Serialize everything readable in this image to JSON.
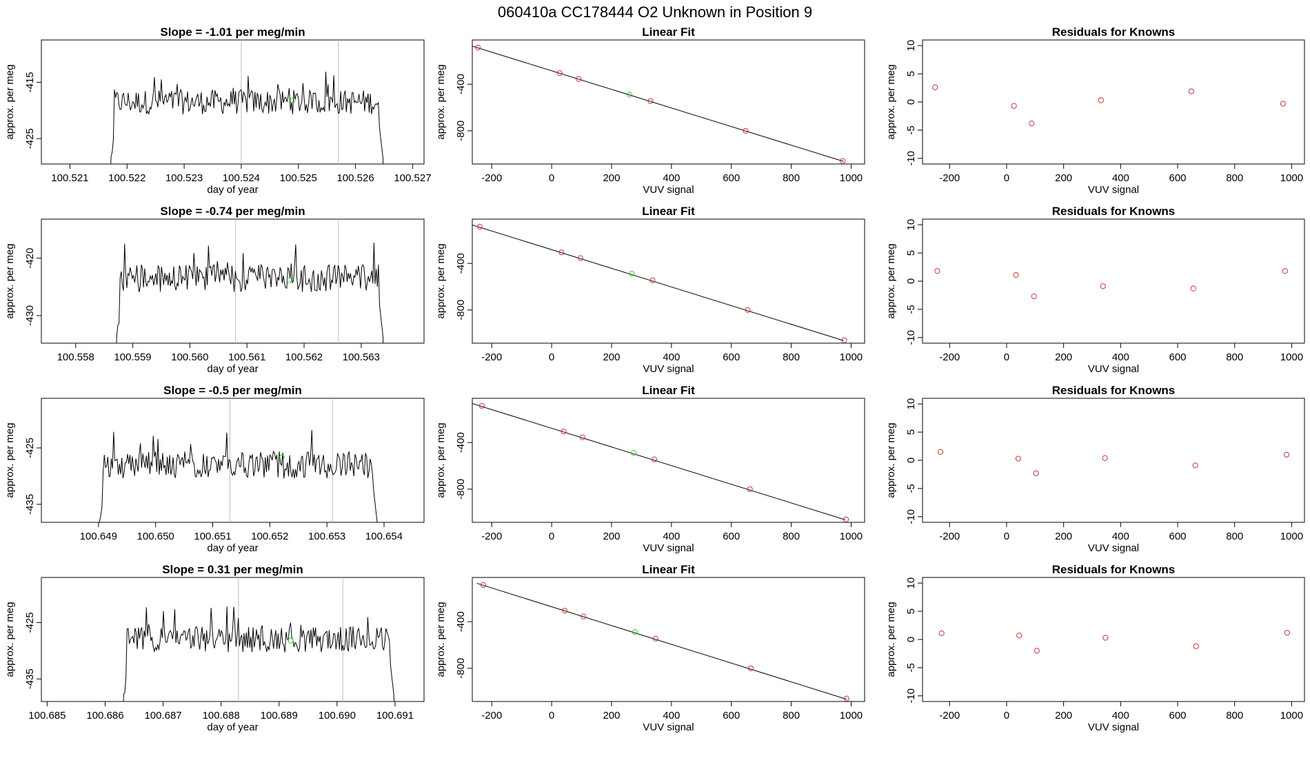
{
  "title": "060410a      CC178444   O2 Unknown in Position  9",
  "colors": {
    "trace": "#000000",
    "fit_line": "#000000",
    "known_point": "#cd3333",
    "unknown_point": "#33cc33",
    "marker_line": "#bebebe"
  },
  "chart_data": [
    {
      "type": "line",
      "panel": "time-series",
      "row": 0,
      "title": "Slope =  -1.01  per meg/min",
      "xlabel": "day of year",
      "ylabel": "approx. per meg",
      "xlim": [
        100.5205,
        100.5272
      ],
      "ylim": [
        -429.5,
        -407.5
      ],
      "xticks": [
        "100.521",
        "100.522",
        "100.523",
        "100.524",
        "100.525",
        "100.526",
        "100.527"
      ],
      "yticks": [
        "-415",
        "-425"
      ],
      "vlines": [
        100.524,
        100.5257
      ],
      "trace_start": 100.5217,
      "trace_end": 100.5265,
      "level": -418.5,
      "noise": 2.2,
      "marker": {
        "x": 100.5249,
        "y": -418.2
      }
    },
    {
      "type": "scatter",
      "panel": "linear-fit",
      "row": 0,
      "title": "Linear Fit",
      "xlabel": "VUV signal",
      "ylabel": "approx. per meg",
      "xlim": [
        -265,
        1045
      ],
      "ylim": [
        -1085,
        -20
      ],
      "xticks": [
        "-200",
        "0",
        "200",
        "400",
        "600",
        "800",
        "1000"
      ],
      "yticks": [
        "-400",
        "-800"
      ],
      "line": {
        "x1": -265,
        "y1": -73,
        "x2": 975,
        "y2": -1063
      },
      "known_points": [
        {
          "x": -246,
          "y": -85
        },
        {
          "x": 27,
          "y": -305
        },
        {
          "x": 90,
          "y": -355
        },
        {
          "x": 330,
          "y": -545
        },
        {
          "x": 648,
          "y": -800
        },
        {
          "x": 972,
          "y": -1060
        }
      ],
      "unknown_point": {
        "x": 260,
        "y": -489
      }
    },
    {
      "type": "scatter",
      "panel": "residuals",
      "row": 0,
      "title": "Residuals for Knowns",
      "xlabel": "VUV signal",
      "ylabel": "approx. per meg",
      "xlim": [
        -295,
        1045
      ],
      "ylim": [
        -11,
        11
      ],
      "xticks": [
        "-200",
        "0",
        "200",
        "400",
        "600",
        "800",
        "1000"
      ],
      "yticks": [
        "10",
        "5",
        "0",
        "-5",
        "-10"
      ],
      "points": [
        {
          "x": -251,
          "y": 2.6
        },
        {
          "x": 26,
          "y": -0.7
        },
        {
          "x": 88,
          "y": -3.8
        },
        {
          "x": 331,
          "y": 0.3
        },
        {
          "x": 648,
          "y": 1.9
        },
        {
          "x": 970,
          "y": -0.3
        }
      ]
    },
    {
      "type": "line",
      "panel": "time-series",
      "row": 1,
      "title": "Slope =  -0.74  per meg/min",
      "xlabel": "day of year",
      "ylabel": "approx. per meg",
      "xlim": [
        100.5574,
        100.5641
      ],
      "ylim": [
        -434.8,
        -413.2
      ],
      "xticks": [
        "100.558",
        "100.559",
        "100.560",
        "100.561",
        "100.562",
        "100.563"
      ],
      "yticks": [
        "-420",
        "-430"
      ],
      "vlines": [
        100.5608,
        100.5626
      ],
      "trace_start": 100.5587,
      "trace_end": 100.5634,
      "level": -423.5,
      "noise": 2.4,
      "marker": {
        "x": 100.56174,
        "y": -423.8
      }
    },
    {
      "type": "scatter",
      "panel": "linear-fit",
      "row": 1,
      "title": "Linear Fit",
      "xlabel": "VUV signal",
      "ylabel": "approx. per meg",
      "xlim": [
        -265,
        1045
      ],
      "ylim": [
        -1085,
        -20
      ],
      "xticks": [
        "-200",
        "0",
        "200",
        "400",
        "600",
        "800",
        "1000"
      ],
      "yticks": [
        "-400",
        "-800"
      ],
      "line": {
        "x1": -265,
        "y1": -70,
        "x2": 975,
        "y2": -1063
      },
      "known_points": [
        {
          "x": -240,
          "y": -85
        },
        {
          "x": 33,
          "y": -305
        },
        {
          "x": 96,
          "y": -355
        },
        {
          "x": 337,
          "y": -545
        },
        {
          "x": 655,
          "y": -800
        },
        {
          "x": 977,
          "y": -1060
        }
      ],
      "unknown_point": {
        "x": 268,
        "y": -489
      }
    },
    {
      "type": "scatter",
      "panel": "residuals",
      "row": 1,
      "title": "Residuals for Knowns",
      "xlabel": "VUV signal",
      "ylabel": "approx. per meg",
      "xlim": [
        -295,
        1045
      ],
      "ylim": [
        -11,
        11
      ],
      "xticks": [
        "-200",
        "0",
        "200",
        "400",
        "600",
        "800",
        "1000"
      ],
      "yticks": [
        "10",
        "5",
        "0",
        "-5",
        "-10"
      ],
      "points": [
        {
          "x": -243,
          "y": 1.8
        },
        {
          "x": 33,
          "y": 1.1
        },
        {
          "x": 96,
          "y": -2.7
        },
        {
          "x": 338,
          "y": -0.9
        },
        {
          "x": 655,
          "y": -1.3
        },
        {
          "x": 977,
          "y": 1.8
        }
      ]
    },
    {
      "type": "line",
      "panel": "time-series",
      "row": 2,
      "title": "Slope =  -0.5  per meg/min",
      "xlabel": "day of year",
      "ylabel": "approx. per meg",
      "xlim": [
        100.648,
        100.6547
      ],
      "ylim": [
        -438.2,
        -416.2
      ],
      "xticks": [
        "100.649",
        "100.650",
        "100.651",
        "100.652",
        "100.653",
        "100.654"
      ],
      "yticks": [
        "-425",
        "-435"
      ],
      "vlines": [
        100.6513,
        100.6531
      ],
      "trace_start": 100.649,
      "trace_end": 100.6539,
      "level": -428.0,
      "noise": 2.4,
      "marker": {
        "x": 100.65221,
        "y": -426.7
      }
    },
    {
      "type": "scatter",
      "panel": "linear-fit",
      "row": 2,
      "title": "Linear Fit",
      "xlabel": "VUV signal",
      "ylabel": "approx. per meg",
      "xlim": [
        -265,
        1045
      ],
      "ylim": [
        -1085,
        -20
      ],
      "xticks": [
        "-200",
        "0",
        "200",
        "400",
        "600",
        "800",
        "1000"
      ],
      "yticks": [
        "-400",
        "-800"
      ],
      "line": {
        "x1": -265,
        "y1": -65,
        "x2": 980,
        "y2": -1063
      },
      "known_points": [
        {
          "x": -233,
          "y": -85
        },
        {
          "x": 40,
          "y": -305
        },
        {
          "x": 103,
          "y": -355
        },
        {
          "x": 343,
          "y": -545
        },
        {
          "x": 662,
          "y": -800
        },
        {
          "x": 983,
          "y": -1060
        }
      ],
      "unknown_point": {
        "x": 274,
        "y": -489
      }
    },
    {
      "type": "scatter",
      "panel": "residuals",
      "row": 2,
      "title": "Residuals for Knowns",
      "xlabel": "VUV signal",
      "ylabel": "approx. per meg",
      "xlim": [
        -295,
        1045
      ],
      "ylim": [
        -11,
        11
      ],
      "xticks": [
        "-200",
        "0",
        "200",
        "400",
        "600",
        "800",
        "1000"
      ],
      "yticks": [
        "10",
        "5",
        "0",
        "-5",
        "-10"
      ],
      "points": [
        {
          "x": -232,
          "y": 1.5
        },
        {
          "x": 41,
          "y": 0.3
        },
        {
          "x": 103,
          "y": -2.3
        },
        {
          "x": 345,
          "y": 0.4
        },
        {
          "x": 662,
          "y": -0.9
        },
        {
          "x": 982,
          "y": 1.0
        }
      ]
    },
    {
      "type": "line",
      "panel": "time-series",
      "row": 3,
      "title": "Slope =  0.31  per meg/min",
      "xlabel": "day of year",
      "ylabel": "approx. per meg",
      "xlim": [
        100.6849,
        100.6915
      ],
      "ylim": [
        -439.0,
        -417.0
      ],
      "xticks": [
        "100.685",
        "100.686",
        "100.687",
        "100.688",
        "100.689",
        "100.690",
        "100.691"
      ],
      "yticks": [
        "-425",
        "-435"
      ],
      "vlines": [
        100.6883,
        100.6901
      ],
      "trace_start": 100.6863,
      "trace_end": 100.691,
      "level": -428.0,
      "noise": 2.3,
      "marker": {
        "x": 100.6892,
        "y": -428.2
      }
    },
    {
      "type": "scatter",
      "panel": "linear-fit",
      "row": 3,
      "title": "Linear Fit",
      "xlabel": "VUV signal",
      "ylabel": "approx. per meg",
      "xlim": [
        -265,
        1045
      ],
      "ylim": [
        -1085,
        -20
      ],
      "xticks": [
        "-200",
        "0",
        "200",
        "400",
        "600",
        "800",
        "1000"
      ],
      "yticks": [
        "-400",
        "-800"
      ],
      "line": {
        "x1": -250,
        "y1": -70,
        "x2": 985,
        "y2": -1066
      },
      "known_points": [
        {
          "x": -228,
          "y": -85
        },
        {
          "x": 44,
          "y": -305
        },
        {
          "x": 106,
          "y": -355
        },
        {
          "x": 347,
          "y": -545
        },
        {
          "x": 665,
          "y": -800
        },
        {
          "x": 985,
          "y": -1060
        }
      ],
      "unknown_point": {
        "x": 278,
        "y": -489
      }
    },
    {
      "type": "scatter",
      "panel": "residuals",
      "row": 3,
      "title": "Residuals for Knowns",
      "xlabel": "VUV signal",
      "ylabel": "approx. per meg",
      "xlim": [
        -295,
        1045
      ],
      "ylim": [
        -11,
        11
      ],
      "xticks": [
        "-200",
        "0",
        "200",
        "400",
        "600",
        "800",
        "1000"
      ],
      "yticks": [
        "10",
        "5",
        "0",
        "-5",
        "-10"
      ],
      "points": [
        {
          "x": -228,
          "y": 1.1
        },
        {
          "x": 44,
          "y": 0.7
        },
        {
          "x": 106,
          "y": -2.0
        },
        {
          "x": 347,
          "y": 0.3
        },
        {
          "x": 665,
          "y": -1.2
        },
        {
          "x": 984,
          "y": 1.2
        }
      ]
    }
  ]
}
